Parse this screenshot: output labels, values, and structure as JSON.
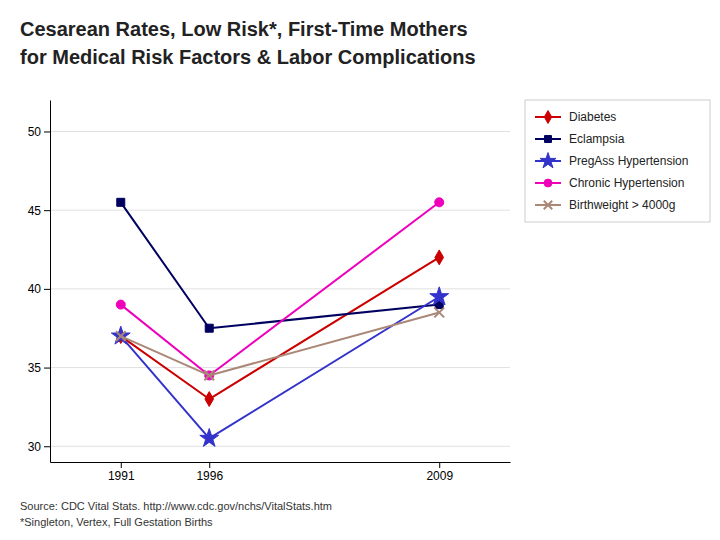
{
  "chart_data": {
    "type": "line",
    "title": "Cesarean Rates, Low Risk*, First-Time Mothers",
    "subtitle": "for Medical Risk Factors & Labor Complications",
    "annotations": [
      "Source: CDC Vital Stats. http://www.cdc.gov/nchs/VitalStats.htm",
      "*Singleton, Vertex, Full Gestation Births"
    ],
    "x": [
      1991,
      1996,
      2009
    ],
    "series": [
      {
        "name": "Diabetes",
        "color": "#cc0000",
        "marker": "diamond",
        "values": [
          37.0,
          33.0,
          42.0
        ]
      },
      {
        "name": "Eclampsia",
        "color": "#000060",
        "marker": "square",
        "values": [
          45.5,
          37.5,
          39.0
        ]
      },
      {
        "name": "PregAss Hypertension",
        "color": "#3333cc",
        "marker": "star",
        "values": [
          37.0,
          30.5,
          39.5
        ]
      },
      {
        "name": "Chronic Hypertension",
        "color": "#ee00bb",
        "marker": "circle",
        "values": [
          39.0,
          34.5,
          45.5
        ]
      },
      {
        "name": "Birthweight > 4000g",
        "color": "#aa8877",
        "marker": "x",
        "values": [
          37.0,
          34.5,
          38.5
        ]
      }
    ],
    "xlim": [
      1987,
      2013
    ],
    "xticks": [
      1991,
      1996,
      2009
    ],
    "ylim": [
      29,
      52
    ],
    "yticks": [
      30,
      35,
      40,
      45,
      50
    ],
    "grid": true,
    "legend": "upper right"
  }
}
